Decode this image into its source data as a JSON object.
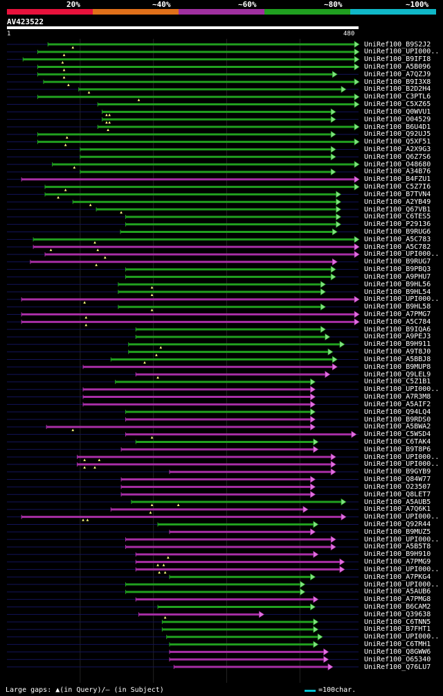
{
  "query": {
    "id": "AV423522",
    "start": "1",
    "end": "480",
    "length": 480
  },
  "legend": [
    {
      "label": "20%",
      "color": "#e8123c"
    },
    {
      "label": "~40%",
      "color": "#e0701a"
    },
    {
      "label": "~60%",
      "color": "#a030a0"
    },
    {
      "label": "~80%",
      "color": "#20a020"
    },
    {
      "label": "~100%",
      "color": "#10b8c8"
    }
  ],
  "colors": {
    "green": "#21a01f",
    "magenta": "#a82ea6",
    "arrow_green": "#7fe07f",
    "arrow_magenta": "#e070e0",
    "faint": "#13135a",
    "grid": "#222222"
  },
  "footer": {
    "gaps_text": "Large gaps: ▲(in Query)/— (in Subject)",
    "scale_text": "=100char."
  },
  "hits": [
    {
      "name": "UniRef100_B9S2J2",
      "qs": 56,
      "qe": 480,
      "c": "g",
      "g": [
        90
      ]
    },
    {
      "name": "UniRef100_UPI000..",
      "qs": 42,
      "qe": 480,
      "c": "g",
      "g": [
        78
      ]
    },
    {
      "name": "UniRef100_B9IFI8",
      "qs": 22,
      "qe": 480,
      "c": "g",
      "g": [
        76
      ]
    },
    {
      "name": "UniRef100_A5B096",
      "qs": 42,
      "qe": 480,
      "c": "g",
      "g": [
        78
      ]
    },
    {
      "name": "UniRef100_A7QZJ9",
      "qs": 42,
      "qe": 450,
      "c": "g",
      "g": [
        78
      ]
    },
    {
      "name": "UniRef100_B9I3X8",
      "qs": 50,
      "qe": 480,
      "c": "g",
      "g": [
        84
      ]
    },
    {
      "name": "UniRef100_B2D2H4",
      "qs": 98,
      "qe": 462,
      "c": "g",
      "g": [
        112
      ]
    },
    {
      "name": "UniRef100_C3PTL6",
      "qs": 42,
      "qe": 480,
      "c": "g",
      "g": [
        180
      ]
    },
    {
      "name": "UniRef100_C5XZ65",
      "qs": 124,
      "qe": 480,
      "c": "g",
      "g": []
    },
    {
      "name": "UniRef100_Q0WVU1",
      "qs": 130,
      "qe": 448,
      "c": "g",
      "g": [
        136,
        140
      ]
    },
    {
      "name": "UniRef100_O04529",
      "qs": 130,
      "qe": 448,
      "c": "g",
      "g": [
        136,
        140
      ]
    },
    {
      "name": "UniRef100_B6U4D1",
      "qs": 124,
      "qe": 480,
      "c": "g",
      "g": [
        138
      ]
    },
    {
      "name": "UniRef100_Q92UJ5",
      "qs": 42,
      "qe": 448,
      "c": "g",
      "g": [
        82
      ]
    },
    {
      "name": "UniRef100_Q5XF51",
      "qs": 42,
      "qe": 480,
      "c": "g",
      "g": [
        80
      ]
    },
    {
      "name": "UniRef100_A2X9G3",
      "qs": 100,
      "qe": 448,
      "c": "g",
      "g": []
    },
    {
      "name": "UniRef100_Q6Z7S6",
      "qs": 100,
      "qe": 448,
      "c": "g",
      "g": []
    },
    {
      "name": "UniRef100_O48680",
      "qs": 62,
      "qe": 480,
      "c": "g",
      "g": [
        92
      ]
    },
    {
      "name": "UniRef100_A34B76",
      "qs": 100,
      "qe": 448,
      "c": "g",
      "g": []
    },
    {
      "name": "UniRef100_B4FZU1",
      "qs": 20,
      "qe": 480,
      "c": "m",
      "g": []
    },
    {
      "name": "UniRef100_C5Z7I6",
      "qs": 52,
      "qe": 480,
      "c": "g",
      "g": [
        80
      ]
    },
    {
      "name": "UniRef100_B7TVN4",
      "qs": 52,
      "qe": 455,
      "c": "g",
      "g": [
        70
      ]
    },
    {
      "name": "UniRef100_A2YB49",
      "qs": 90,
      "qe": 455,
      "c": "g",
      "g": [
        114
      ]
    },
    {
      "name": "UniRef100_Q67VB1",
      "qs": 122,
      "qe": 455,
      "c": "g",
      "g": [
        156
      ]
    },
    {
      "name": "UniRef100_C6TES5",
      "qs": 162,
      "qe": 455,
      "c": "g",
      "g": []
    },
    {
      "name": "UniRef100_P29136",
      "qs": 162,
      "qe": 455,
      "c": "g",
      "g": []
    },
    {
      "name": "UniRef100_B9RUG6",
      "qs": 155,
      "qe": 450,
      "c": "g",
      "g": []
    },
    {
      "name": "UniRef100_A5C783",
      "qs": 36,
      "qe": 480,
      "c": "g",
      "g": [
        120
      ]
    },
    {
      "name": "UniRef100_A5C782",
      "qs": 36,
      "qe": 480,
      "c": "m",
      "g": [
        60,
        124
      ]
    },
    {
      "name": "UniRef100_UPI000..",
      "qs": 52,
      "qe": 480,
      "c": "m",
      "g": [
        134
      ]
    },
    {
      "name": "UniRef100_B9RUG7",
      "qs": 32,
      "qe": 450,
      "c": "m",
      "g": [
        122
      ]
    },
    {
      "name": "UniRef100_B9PBQ3",
      "qs": 162,
      "qe": 448,
      "c": "g",
      "g": []
    },
    {
      "name": "UniRef100_A9PHU7",
      "qs": 162,
      "qe": 448,
      "c": "g",
      "g": []
    },
    {
      "name": "UniRef100_B9HL56",
      "qs": 152,
      "qe": 434,
      "c": "g",
      "g": [
        198
      ]
    },
    {
      "name": "UniRef100_B9HL54",
      "qs": 152,
      "qe": 434,
      "c": "g",
      "g": [
        198
      ]
    },
    {
      "name": "UniRef100_UPI000..",
      "qs": 20,
      "qe": 480,
      "c": "m",
      "g": [
        106
      ]
    },
    {
      "name": "UniRef100_B9HL58",
      "qs": 152,
      "qe": 434,
      "c": "g",
      "g": [
        198
      ]
    },
    {
      "name": "UniRef100_A7PMG7",
      "qs": 20,
      "qe": 480,
      "c": "m",
      "g": [
        108
      ]
    },
    {
      "name": "UniRef100_A5C784",
      "qs": 20,
      "qe": 480,
      "c": "m",
      "g": [
        108
      ]
    },
    {
      "name": "UniRef100_B9IQA6",
      "qs": 176,
      "qe": 434,
      "c": "g",
      "g": []
    },
    {
      "name": "UniRef100_A9PEJ3",
      "qs": 176,
      "qe": 440,
      "c": "g",
      "g": []
    },
    {
      "name": "UniRef100_B9H911",
      "qs": 166,
      "qe": 460,
      "c": "g",
      "g": [
        210
      ]
    },
    {
      "name": "UniRef100_A9T8J0",
      "qs": 166,
      "qe": 444,
      "c": "g",
      "g": [
        204
      ]
    },
    {
      "name": "UniRef100_A5BBJ8",
      "qs": 142,
      "qe": 450,
      "c": "g",
      "g": [
        188
      ]
    },
    {
      "name": "UniRef100_B9MUP8",
      "qs": 104,
      "qe": 450,
      "c": "m",
      "g": []
    },
    {
      "name": "UniRef100_Q9LEL9",
      "qs": 176,
      "qe": 440,
      "c": "m",
      "g": [
        206
      ]
    },
    {
      "name": "UniRef100_C5Z1B1",
      "qs": 148,
      "qe": 420,
      "c": "g",
      "g": []
    },
    {
      "name": "UniRef100_UPI000..",
      "qs": 104,
      "qe": 420,
      "c": "m",
      "g": []
    },
    {
      "name": "UniRef100_A7R3M8",
      "qs": 104,
      "qe": 420,
      "c": "m",
      "g": []
    },
    {
      "name": "UniRef100_A5AIF2",
      "qs": 104,
      "qe": 420,
      "c": "m",
      "g": []
    },
    {
      "name": "UniRef100_Q94LQ4",
      "qs": 162,
      "qe": 420,
      "c": "g",
      "g": []
    },
    {
      "name": "UniRef100_B9RDS0",
      "qs": 162,
      "qe": 420,
      "c": "m",
      "g": []
    },
    {
      "name": "UniRef100_A5BWA2",
      "qs": 54,
      "qe": 420,
      "c": "m",
      "g": [
        90
      ]
    },
    {
      "name": "UniRef100_C5WSD4",
      "qs": 162,
      "qe": 476,
      "c": "m",
      "g": [
        198
      ]
    },
    {
      "name": "UniRef100_C6TAK4",
      "qs": 176,
      "qe": 424,
      "c": "g",
      "g": []
    },
    {
      "name": "UniRef100_B9T8P6",
      "qs": 156,
      "qe": 424,
      "c": "m",
      "g": []
    },
    {
      "name": "UniRef100_UPI000..",
      "qs": 96,
      "qe": 448,
      "c": "m",
      "g": [
        106,
        126
      ]
    },
    {
      "name": "UniRef100_UPI000..",
      "qs": 96,
      "qe": 448,
      "c": "m",
      "g": [
        106,
        120
      ]
    },
    {
      "name": "UniRef100_B9GYB9",
      "qs": 222,
      "qe": 448,
      "c": "m",
      "g": []
    },
    {
      "name": "UniRef100_Q84W77",
      "qs": 156,
      "qe": 420,
      "c": "m",
      "g": []
    },
    {
      "name": "UniRef100_O23507",
      "qs": 156,
      "qe": 420,
      "c": "m",
      "g": []
    },
    {
      "name": "UniRef100_Q8LET7",
      "qs": 156,
      "qe": 420,
      "c": "m",
      "g": []
    },
    {
      "name": "UniRef100_A5AUB5",
      "qs": 170,
      "qe": 462,
      "c": "g",
      "g": [
        198,
        234
      ]
    },
    {
      "name": "UniRef100_A7Q6K1",
      "qs": 142,
      "qe": 410,
      "c": "m",
      "g": [
        196
      ]
    },
    {
      "name": "UniRef100_UPI000..",
      "qs": 20,
      "qe": 462,
      "c": "m",
      "g": [
        104,
        110
      ]
    },
    {
      "name": "UniRef100_Q92R44",
      "qs": 206,
      "qe": 424,
      "c": "g",
      "g": []
    },
    {
      "name": "UniRef100_B9MUZ5",
      "qs": 222,
      "qe": 420,
      "c": "m",
      "g": []
    },
    {
      "name": "UniRef100_UPI000..",
      "qs": 162,
      "qe": 448,
      "c": "m",
      "g": []
    },
    {
      "name": "UniRef100_A5B5T8",
      "qs": 162,
      "qe": 448,
      "c": "m",
      "g": []
    },
    {
      "name": "UniRef100_B9H910",
      "qs": 176,
      "qe": 424,
      "c": "m",
      "g": [
        220
      ]
    },
    {
      "name": "UniRef100_A7PMG9",
      "qs": 176,
      "qe": 460,
      "c": "m",
      "g": [
        206,
        214
      ]
    },
    {
      "name": "UniRef100_UPI000..",
      "qs": 176,
      "qe": 460,
      "c": "m",
      "g": [
        208,
        216
      ]
    },
    {
      "name": "UniRef100_A7PKG4",
      "qs": 222,
      "qe": 420,
      "c": "g",
      "g": []
    },
    {
      "name": "UniRef100_UPI000..",
      "qs": 162,
      "qe": 406,
      "c": "g",
      "g": []
    },
    {
      "name": "UniRef100_A5AUB6",
      "qs": 162,
      "qe": 406,
      "c": "g",
      "g": []
    },
    {
      "name": "UniRef100_A7PMG8",
      "qs": 176,
      "qe": 424,
      "c": "m",
      "g": []
    },
    {
      "name": "UniRef100_B6CAM2",
      "qs": 206,
      "qe": 420,
      "c": "g",
      "g": []
    },
    {
      "name": "UniRef100_Q39638",
      "qs": 180,
      "qe": 350,
      "c": "m",
      "g": [
        216
      ]
    },
    {
      "name": "UniRef100_C6TNN5",
      "qs": 212,
      "qe": 424,
      "c": "g",
      "g": []
    },
    {
      "name": "UniRef100_B7FHT1",
      "qs": 212,
      "qe": 424,
      "c": "g",
      "g": []
    },
    {
      "name": "UniRef100_UPI000..",
      "qs": 218,
      "qe": 430,
      "c": "g",
      "g": []
    },
    {
      "name": "UniRef100_C6TMH1",
      "qs": 222,
      "qe": 424,
      "c": "g",
      "g": []
    },
    {
      "name": "UniRef100_Q8GWW6",
      "qs": 222,
      "qe": 438,
      "c": "m",
      "g": []
    },
    {
      "name": "UniRef100_O65340",
      "qs": 222,
      "qe": 438,
      "c": "m",
      "g": []
    },
    {
      "name": "UniRef100_Q76LU7",
      "qs": 228,
      "qe": 444,
      "c": "m",
      "g": []
    }
  ]
}
